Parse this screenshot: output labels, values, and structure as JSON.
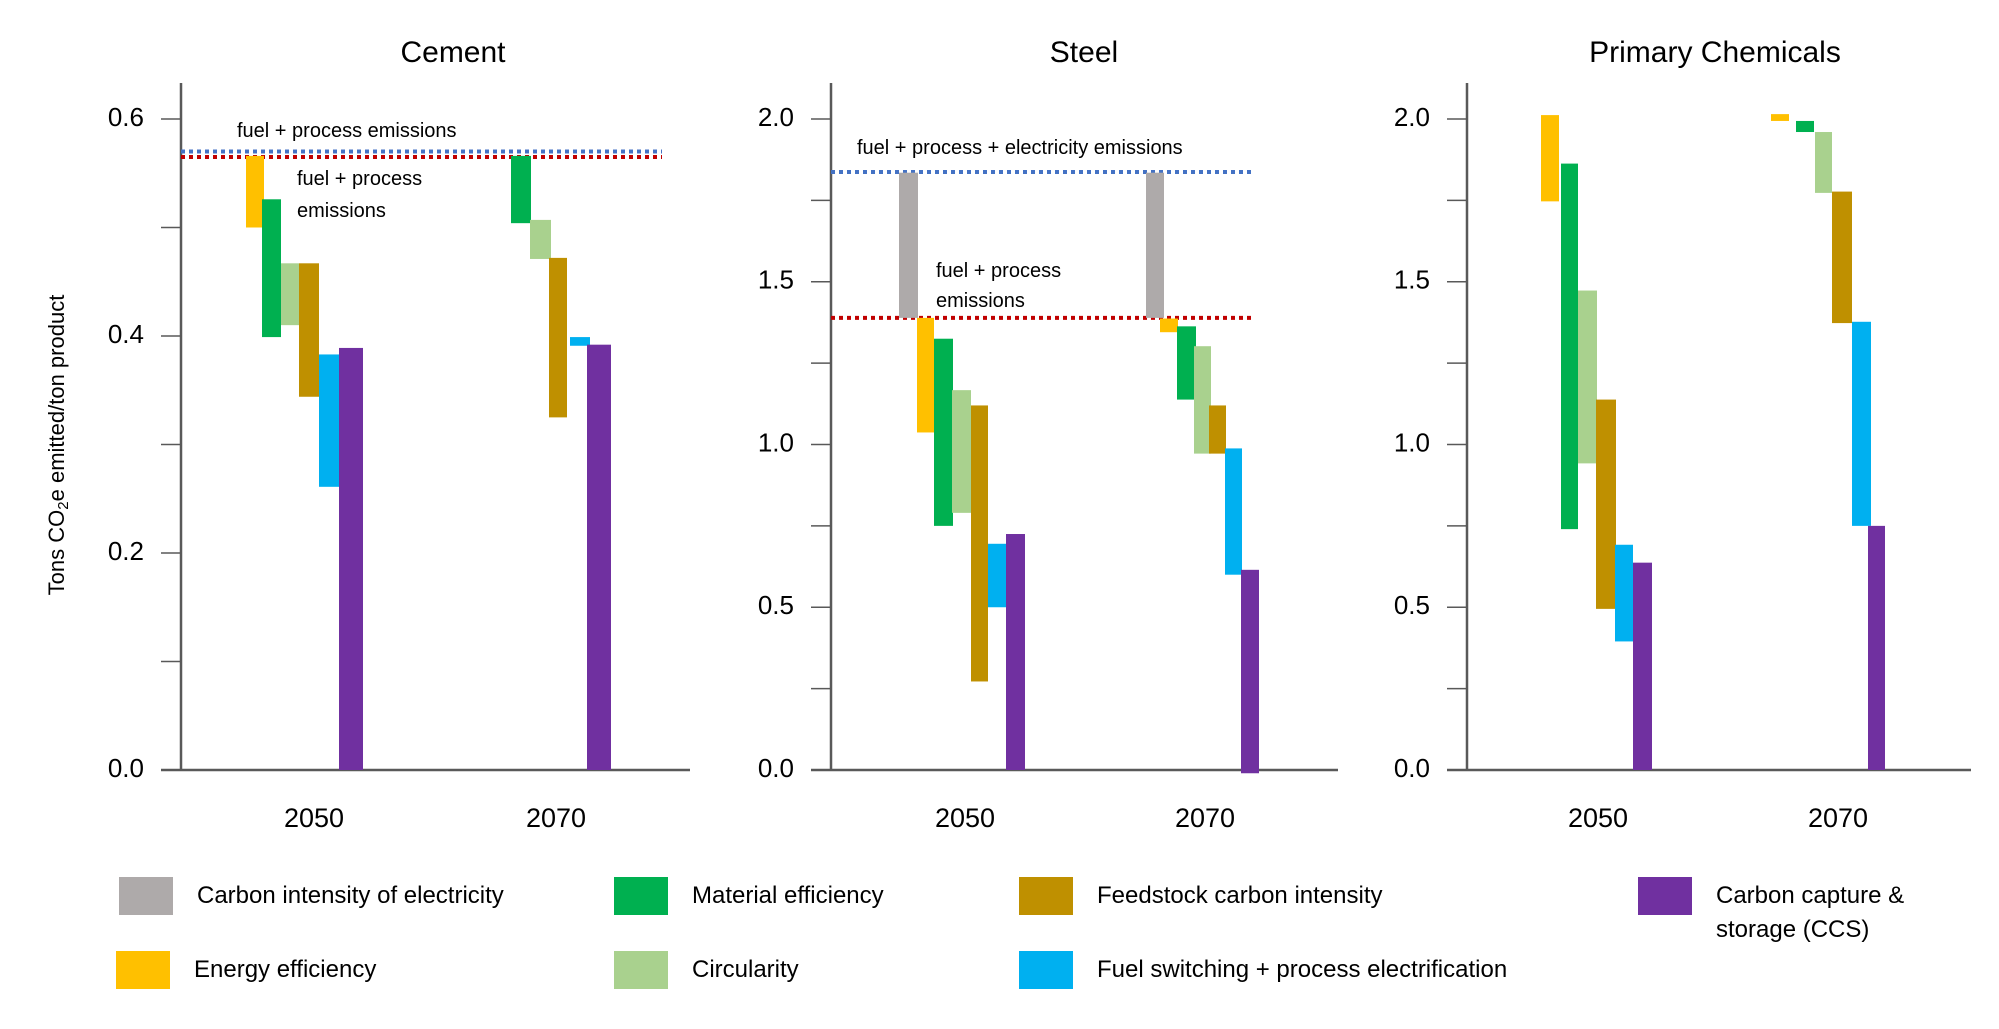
{
  "chart_data": {
    "type": "bar",
    "subtype": "waterfall",
    "ylabel_parts": {
      "pre": "Tons CO",
      "sub": "2",
      "post": "e emitted/ton product"
    },
    "ylabel": "Tons CO2e emitted/ton product",
    "categories": [
      "2050",
      "2070"
    ],
    "series_legend": [
      {
        "key": "electricity",
        "name": "Carbon intensity of electricity",
        "color": "#aeaaaa"
      },
      {
        "key": "energy_eff",
        "name": "Energy efficiency",
        "color": "#ffc000"
      },
      {
        "key": "material_eff",
        "name": "Material efficiency",
        "color": "#00b050"
      },
      {
        "key": "circularity",
        "name": "Circularity",
        "color": "#a9d18e"
      },
      {
        "key": "feedstock",
        "name": "Feedstock carbon intensity",
        "color": "#bf9000"
      },
      {
        "key": "fuel_switch",
        "name": "Fuel switching + process electrification",
        "color": "#00b0f0"
      },
      {
        "key": "ccs",
        "name": "Carbon capture & storage (CCS)",
        "color": "#7030a0"
      }
    ],
    "panels": [
      {
        "title": "Cement",
        "ylim": [
          0,
          0.6
        ],
        "yticks": [
          0.0,
          0.1,
          0.2,
          0.3,
          0.4,
          0.5,
          0.6
        ],
        "yticklabels": [
          "0.0",
          "",
          "0.2",
          "",
          "0.4",
          "",
          "0.6"
        ],
        "reference_lines": [
          {
            "name": "fuel-process-emissions-blue",
            "value": 0.57,
            "color": "#4472c4",
            "label": "fuel + process emissions"
          },
          {
            "name": "fuel-process-emissions-red",
            "value": 0.565,
            "color": "#c00000",
            "label": "fuel + process\nemissions"
          }
        ],
        "groups": [
          {
            "year": "2050",
            "bars": [
              {
                "key": "energy_eff",
                "from": 0.566,
                "to": 0.5
              },
              {
                "key": "material_eff",
                "from": 0.526,
                "to": 0.399
              },
              {
                "key": "circularity",
                "from": 0.467,
                "to": 0.41
              },
              {
                "key": "feedstock",
                "from": 0.467,
                "to": 0.344
              },
              {
                "key": "fuel_switch",
                "from": 0.383,
                "to": 0.261
              },
              {
                "key": "ccs",
                "from": 0.389,
                "to": 0.0
              }
            ]
          },
          {
            "year": "2070",
            "bars": [
              {
                "key": "material_eff",
                "from": 0.566,
                "to": 0.504
              },
              {
                "key": "circularity",
                "from": 0.507,
                "to": 0.471
              },
              {
                "key": "feedstock",
                "from": 0.472,
                "to": 0.325
              },
              {
                "key": "fuel_switch",
                "from": 0.399,
                "to": 0.391
              },
              {
                "key": "ccs",
                "from": 0.392,
                "to": 0.0
              }
            ]
          }
        ]
      },
      {
        "title": "Steel",
        "ylim": [
          0,
          2.0
        ],
        "yticks": [
          0.0,
          0.25,
          0.5,
          0.75,
          1.0,
          1.25,
          1.5,
          1.75,
          2.0
        ],
        "yticklabels": [
          "0.0",
          "",
          "0.5",
          "",
          "1.0",
          "",
          "1.5",
          "",
          "2.0"
        ],
        "reference_lines": [
          {
            "name": "fuel-process-electricity-emissions-blue",
            "value": 1.837,
            "color": "#4472c4",
            "label": "fuel + process + electricity emissions"
          },
          {
            "name": "fuel-process-emissions-red",
            "value": 1.389,
            "color": "#c00000",
            "label": "fuel + process\nemissions"
          }
        ],
        "groups": [
          {
            "year": "2050",
            "bars": [
              {
                "key": "electricity",
                "from": 1.835,
                "to": 1.389
              },
              {
                "key": "energy_eff",
                "from": 1.389,
                "to": 1.037
              },
              {
                "key": "material_eff",
                "from": 1.325,
                "to": 0.75
              },
              {
                "key": "circularity",
                "from": 1.167,
                "to": 0.79
              },
              {
                "key": "feedstock",
                "from": 1.12,
                "to": 0.272
              },
              {
                "key": "fuel_switch",
                "from": 0.695,
                "to": 0.5
              },
              {
                "key": "ccs",
                "from": 0.725,
                "to": 0.0
              }
            ]
          },
          {
            "year": "2070",
            "bars": [
              {
                "key": "electricity",
                "from": 1.835,
                "to": 1.389
              },
              {
                "key": "energy_eff",
                "from": 1.387,
                "to": 1.345
              },
              {
                "key": "material_eff",
                "from": 1.363,
                "to": 1.138
              },
              {
                "key": "circularity",
                "from": 1.302,
                "to": 0.972
              },
              {
                "key": "feedstock",
                "from": 1.12,
                "to": 0.972
              },
              {
                "key": "fuel_switch",
                "from": 0.988,
                "to": 0.6
              },
              {
                "key": "ccs",
                "from": 0.615,
                "to": -0.01
              }
            ]
          }
        ]
      },
      {
        "title": "Primary Chemicals",
        "ylim": [
          0,
          2.0
        ],
        "yticks": [
          0.0,
          0.25,
          0.5,
          0.75,
          1.0,
          1.25,
          1.5,
          1.75,
          2.0
        ],
        "yticklabels": [
          "0.0",
          "",
          "0.5",
          "",
          "1.0",
          "",
          "1.5",
          "",
          "2.0"
        ],
        "reference_lines": [],
        "groups": [
          {
            "year": "2050",
            "bars": [
              {
                "key": "energy_eff",
                "from": 2.012,
                "to": 1.747
              },
              {
                "key": "material_eff",
                "from": 1.863,
                "to": 0.74
              },
              {
                "key": "circularity",
                "from": 1.473,
                "to": 0.942
              },
              {
                "key": "feedstock",
                "from": 1.138,
                "to": 0.495
              },
              {
                "key": "fuel_switch",
                "from": 0.692,
                "to": 0.395
              },
              {
                "key": "ccs",
                "from": 0.637,
                "to": 0.0
              }
            ]
          },
          {
            "year": "2070",
            "bars": [
              {
                "key": "energy_eff",
                "from": 2.015,
                "to": 1.994
              },
              {
                "key": "material_eff",
                "from": 1.994,
                "to": 1.96
              },
              {
                "key": "circularity",
                "from": 1.96,
                "to": 1.773
              },
              {
                "key": "feedstock",
                "from": 1.777,
                "to": 1.373
              },
              {
                "key": "fuel_switch",
                "from": 1.377,
                "to": 0.75
              },
              {
                "key": "ccs",
                "from": 0.75,
                "to": 0.0
              }
            ]
          }
        ]
      }
    ],
    "legend_placement": "bottom"
  }
}
